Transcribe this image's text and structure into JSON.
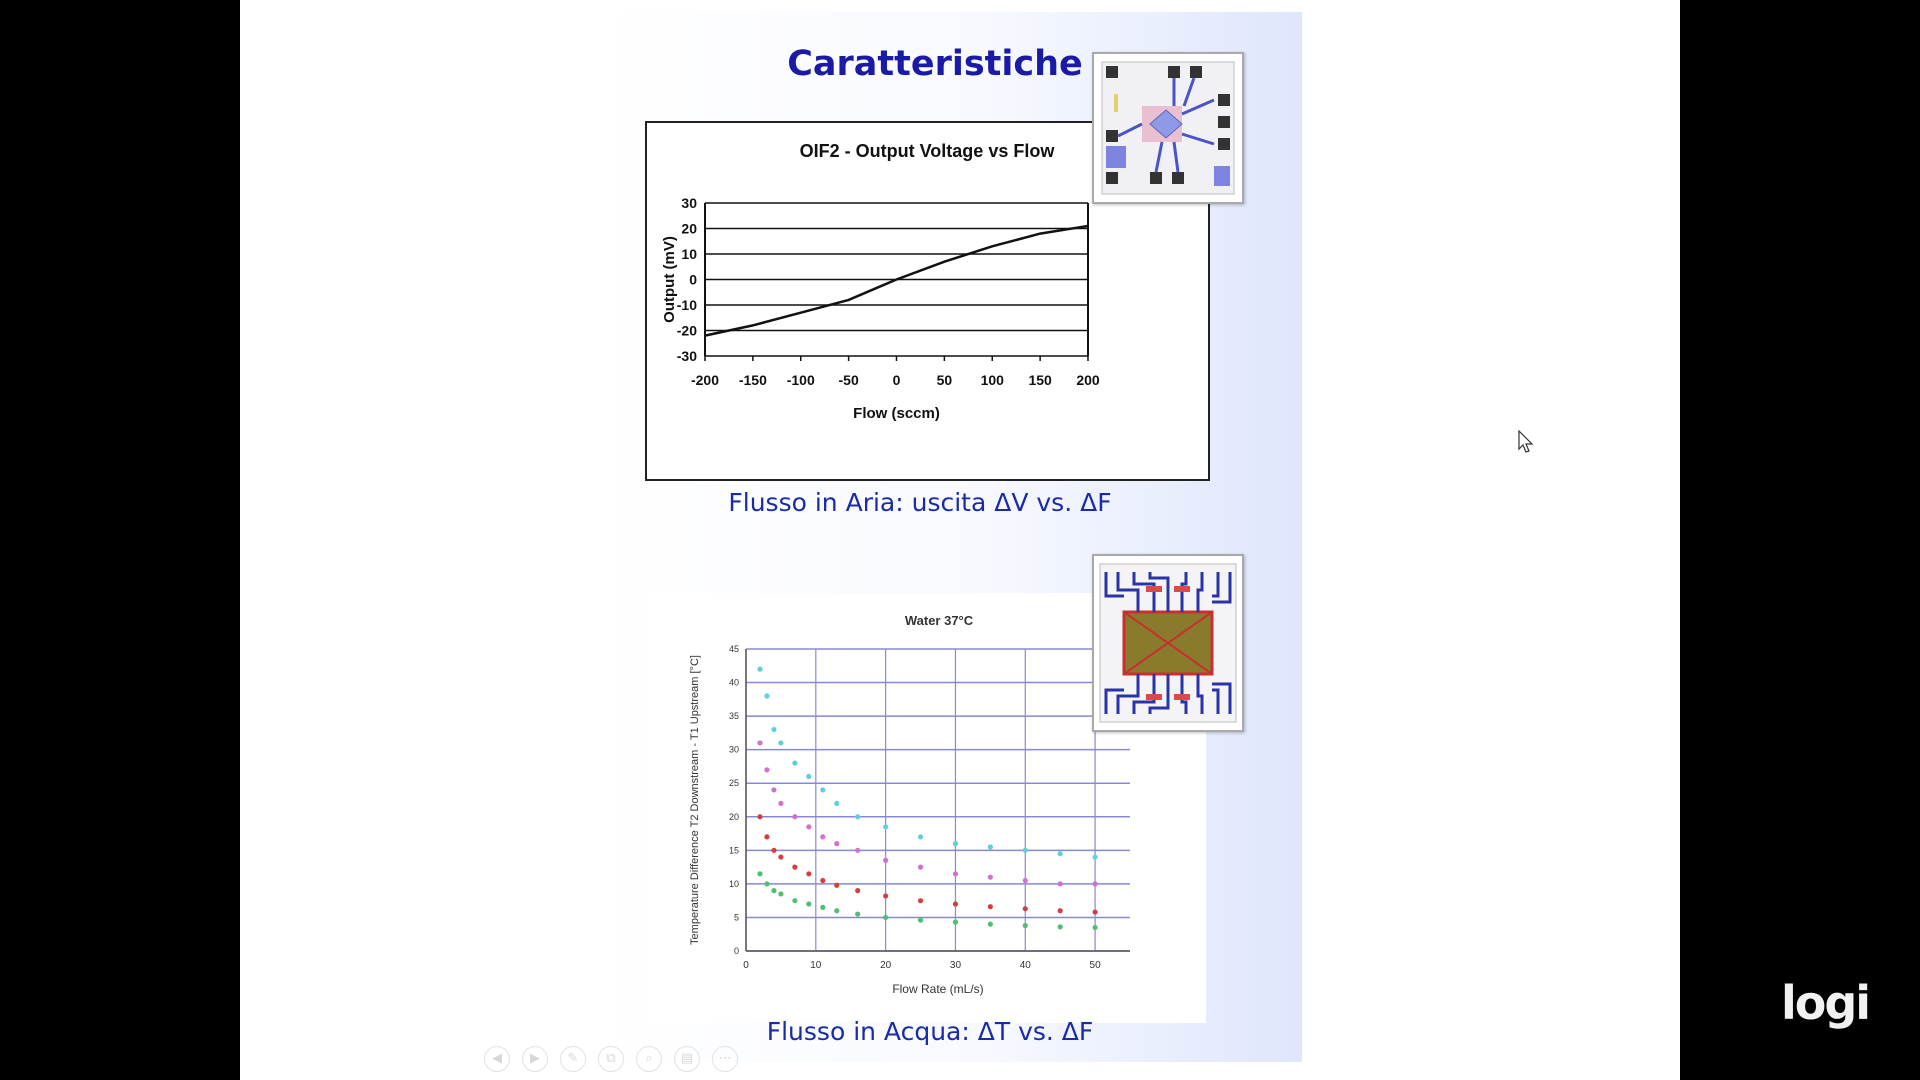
{
  "slide": {
    "title": "Caratteristiche",
    "caption_air": "Flusso in Aria: uscita ΔV vs. ΔF",
    "caption_water": "Flusso in Acqua: ΔT vs. ΔF"
  },
  "chart_data": [
    {
      "type": "line",
      "title": "OIF2 - Output Voltage vs Flow",
      "xlabel": "Flow (sccm)",
      "ylabel": "Output (mV)",
      "xlim": [
        -200,
        200
      ],
      "ylim": [
        -30,
        30
      ],
      "xticks": [
        "-200",
        "-150",
        "-100",
        "-50",
        "0",
        "50",
        "100",
        "150",
        "200"
      ],
      "yticks": [
        "30",
        "20",
        "10",
        "0",
        "-10",
        "-20",
        "-30"
      ],
      "grid": "horizontal",
      "series": [
        {
          "name": "Output",
          "x": [
            -200,
            -150,
            -100,
            -50,
            0,
            50,
            100,
            150,
            200
          ],
          "y": [
            -22,
            -18,
            -13,
            -8,
            0,
            7,
            13,
            18,
            21
          ],
          "color": "#111111"
        }
      ]
    },
    {
      "type": "scatter",
      "title": "Water 37°C",
      "xlabel": "Flow Rate (mL/s)",
      "ylabel": "Temperature Difference T2 Downstream - T1 Upstream [°C]",
      "xlim": [
        0,
        55
      ],
      "ylim": [
        0,
        45
      ],
      "xticks": [
        "0",
        "10",
        "20",
        "30",
        "40",
        "50"
      ],
      "yticks": [
        "45",
        "40",
        "35",
        "30",
        "25",
        "20",
        "15",
        "10",
        "5",
        "0"
      ],
      "grid": "both",
      "series": [
        {
          "name": "cyan",
          "color": "#5fd0d8",
          "x": [
            2,
            3,
            4,
            5,
            7,
            9,
            11,
            13,
            16,
            20,
            25,
            30,
            35,
            40,
            45,
            50
          ],
          "y": [
            42,
            38,
            33,
            31,
            28,
            26,
            24,
            22,
            20,
            18.5,
            17,
            16,
            15.5,
            15,
            14.5,
            14
          ]
        },
        {
          "name": "magenta",
          "color": "#d070d0",
          "x": [
            2,
            3,
            4,
            5,
            7,
            9,
            11,
            13,
            16,
            20,
            25,
            30,
            35,
            40,
            45,
            50
          ],
          "y": [
            31,
            27,
            24,
            22,
            20,
            18.5,
            17,
            16,
            15,
            13.5,
            12.5,
            11.5,
            11,
            10.5,
            10,
            10
          ]
        },
        {
          "name": "red",
          "color": "#d04040",
          "x": [
            2,
            3,
            4,
            5,
            7,
            9,
            11,
            13,
            16,
            20,
            25,
            30,
            35,
            40,
            45,
            50
          ],
          "y": [
            20,
            17,
            15,
            14,
            12.5,
            11.5,
            10.5,
            9.8,
            9,
            8.2,
            7.5,
            7,
            6.6,
            6.3,
            6,
            5.8
          ]
        },
        {
          "name": "green",
          "color": "#50c070",
          "x": [
            2,
            3,
            4,
            5,
            7,
            9,
            11,
            13,
            16,
            20,
            25,
            30,
            35,
            40,
            45,
            50
          ],
          "y": [
            11.5,
            10,
            9,
            8.5,
            7.5,
            7,
            6.5,
            6,
            5.5,
            5,
            4.6,
            4.3,
            4,
            3.8,
            3.6,
            3.5
          ]
        }
      ]
    }
  ],
  "chip_images": {
    "air_chip": "air-flow-sensor-chip-layout",
    "water_chip": "water-flow-sensor-chip-layout"
  },
  "toolbar": {
    "buttons": [
      "◀",
      "▶",
      "✎",
      "⧉",
      "⌕",
      "▤",
      "⋯"
    ]
  },
  "watermark": {
    "brand": "logi"
  },
  "colors": {
    "title": "#1a1aa6",
    "caption": "#1a2aa8",
    "slide_gradient_end": "#dfe6fc"
  }
}
